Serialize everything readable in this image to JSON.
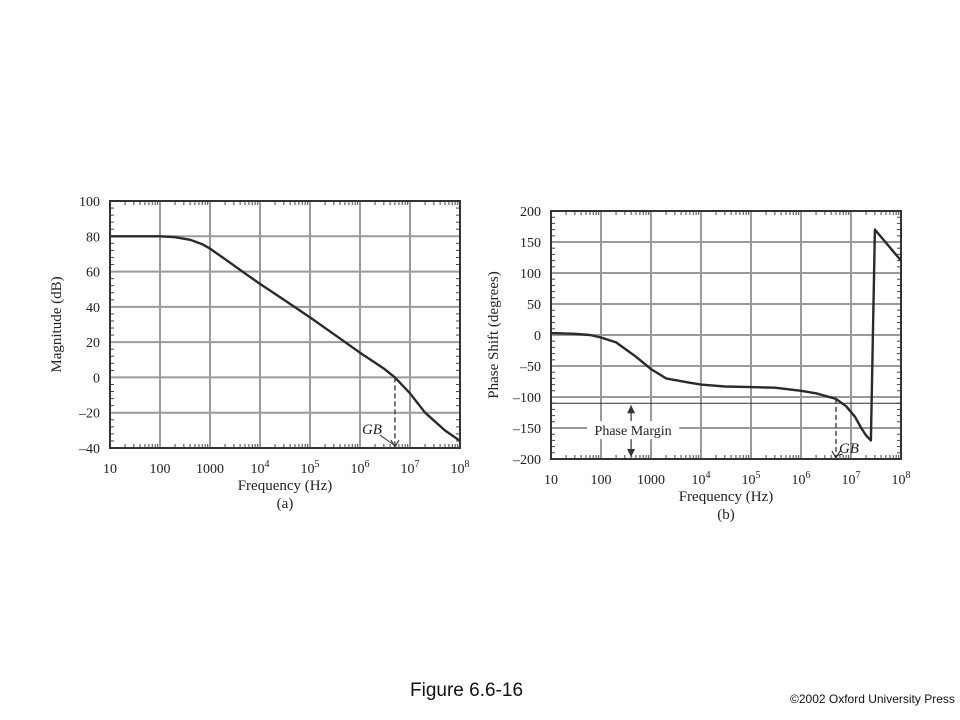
{
  "figure": {
    "caption": "Figure 6.6-16",
    "copyright": "©2002 Oxford University Press"
  },
  "chart_data": [
    {
      "type": "line",
      "panel_label": "(a)",
      "xlabel": "Frequency (Hz)",
      "ylabel": "Magnitude (dB)",
      "xscale": "log",
      "xlim": [
        10,
        100000000
      ],
      "ylim": [
        -40,
        100
      ],
      "grid": true,
      "x_tick_labels": [
        "10",
        "100",
        "1000",
        "10^4",
        "10^5",
        "10^6",
        "10^7",
        "10^8"
      ],
      "y_tick_labels": [
        "100",
        "80",
        "60",
        "40",
        "20",
        "0",
        "–20",
        "–40"
      ],
      "y_ticks": [
        100,
        80,
        60,
        40,
        20,
        0,
        -20,
        -40
      ],
      "series": [
        {
          "x": [
            10,
            30,
            100,
            200,
            400,
            700,
            1000,
            2000,
            5000,
            10000,
            30000,
            100000,
            300000,
            1000000,
            3000000,
            5000000,
            10000000,
            20000000,
            50000000,
            100000000
          ],
          "y": [
            80,
            80,
            80,
            79.5,
            78,
            75.5,
            73,
            67,
            59,
            53,
            44,
            34,
            24.5,
            14,
            5,
            0,
            -9,
            -20,
            -30,
            -36
          ]
        }
      ],
      "annotations": [
        {
          "text": "GB",
          "x": 5000000,
          "y": 0,
          "style": "dashed-drop"
        }
      ]
    },
    {
      "type": "line",
      "panel_label": "(b)",
      "xlabel": "Frequency (Hz)",
      "ylabel": "Phase Shift (degrees)",
      "xscale": "log",
      "xlim": [
        10,
        100000000
      ],
      "ylim": [
        -200,
        200
      ],
      "grid": true,
      "x_tick_labels": [
        "10",
        "100",
        "1000",
        "10^4",
        "10^5",
        "10^6",
        "10^7",
        "10^8"
      ],
      "y_tick_labels": [
        "200",
        "150",
        "100",
        "50",
        "0",
        "–50",
        "–100",
        "–150",
        "–200"
      ],
      "y_ticks": [
        200,
        150,
        100,
        50,
        0,
        -50,
        -100,
        -150,
        -200
      ],
      "series": [
        {
          "x": [
            10,
            30,
            60,
            100,
            200,
            500,
            1000,
            2000,
            5000,
            10000,
            30000,
            100000,
            300000,
            1000000,
            2000000,
            5000000,
            8000000,
            12000000,
            16000000,
            20000000,
            25000000,
            30000000,
            100000000
          ],
          "y": [
            3,
            2,
            0,
            -4,
            -12,
            -35,
            -55,
            -70,
            -76,
            -80,
            -83,
            -84,
            -85,
            -90,
            -94,
            -103,
            -115,
            -132,
            -150,
            -162,
            -170,
            170,
            120
          ]
        }
      ],
      "annotations": [
        {
          "text": "Phase Margin",
          "x": 400,
          "y_from": -180,
          "y_to": -110,
          "style": "double-arrow"
        },
        {
          "text": "GB",
          "x": 5000000,
          "y": -103,
          "style": "dashed-drop"
        }
      ],
      "reference_lines": [
        -110
      ]
    }
  ]
}
